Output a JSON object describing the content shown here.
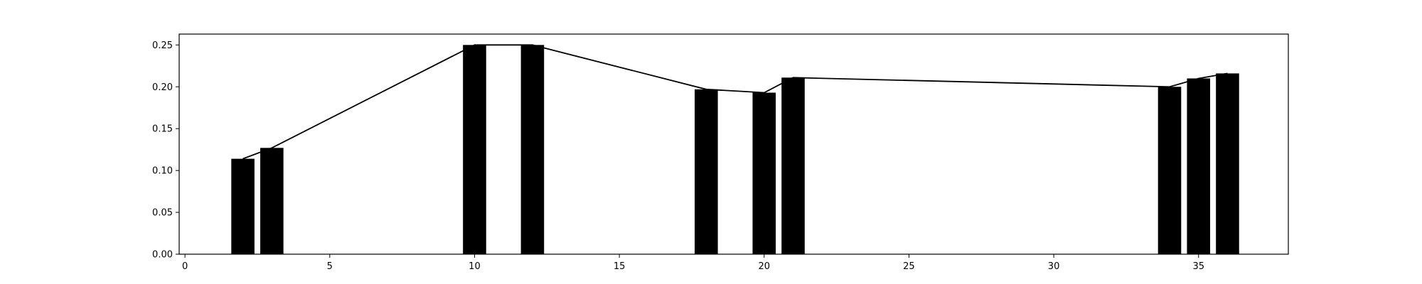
{
  "chart_data": {
    "type": "bar",
    "title": "",
    "xlabel": "",
    "ylabel": "",
    "xlim": [
      -0.2,
      38.1
    ],
    "ylim": [
      0,
      0.263
    ],
    "grid": false,
    "legend": "none",
    "bar_width": 0.8,
    "bar_color": "#000000",
    "line_color": "#000000",
    "x_ticks": [
      0,
      5,
      10,
      15,
      20,
      25,
      30,
      35
    ],
    "y_ticks": [
      0.0,
      0.05,
      0.1,
      0.15,
      0.2,
      0.25
    ],
    "x_tick_labels": [
      "0",
      "5",
      "10",
      "15",
      "20",
      "25",
      "30",
      "35"
    ],
    "y_tick_labels": [
      "0.00",
      "0.05",
      "0.10",
      "0.15",
      "0.20",
      "0.25"
    ],
    "series": [
      {
        "type": "bar",
        "x": [
          2,
          3,
          10,
          12,
          18,
          20,
          21,
          34,
          35,
          36
        ],
        "values": [
          0.114,
          0.127,
          0.25,
          0.25,
          0.197,
          0.193,
          0.211,
          0.2,
          0.21,
          0.216
        ]
      },
      {
        "type": "line",
        "x": [
          2,
          3,
          10,
          12,
          18,
          20,
          21,
          34,
          35,
          36
        ],
        "values": [
          0.114,
          0.127,
          0.25,
          0.25,
          0.197,
          0.193,
          0.211,
          0.2,
          0.21,
          0.216
        ]
      }
    ]
  }
}
